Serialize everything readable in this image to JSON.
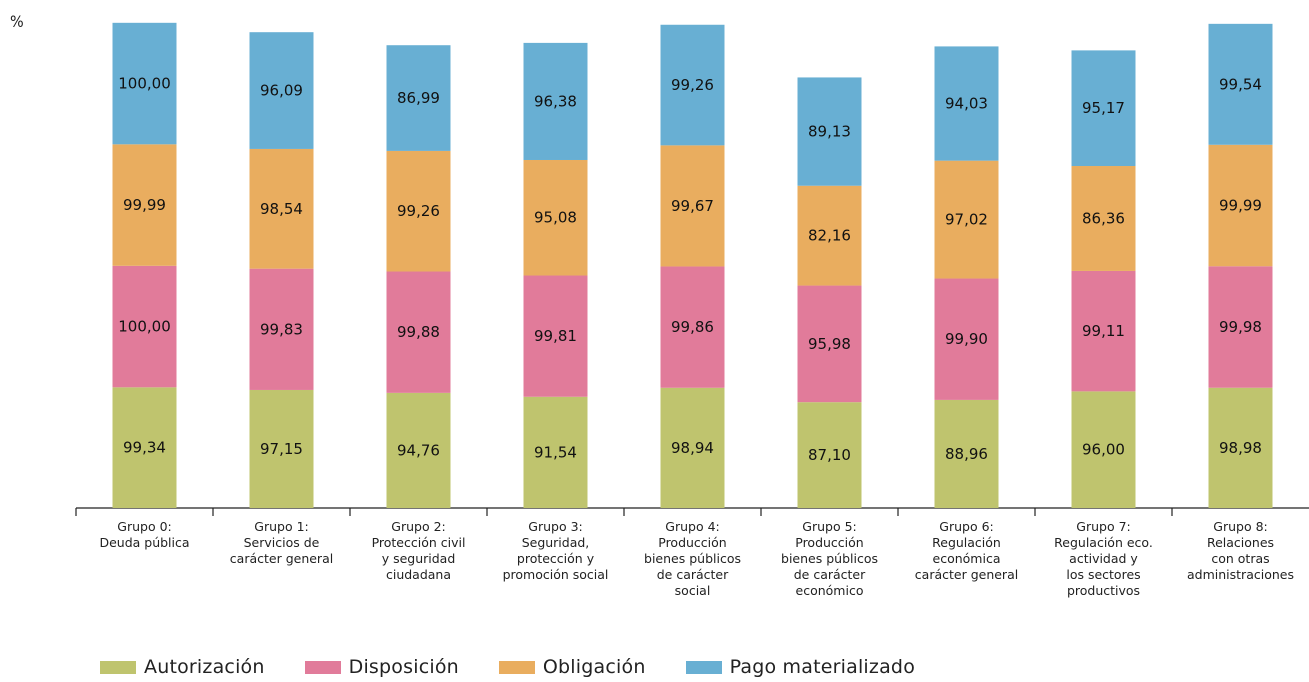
{
  "chart_data": {
    "type": "bar",
    "stacked": true,
    "ylabel": "%",
    "categories": [
      [
        "Grupo 0:",
        "Deuda pública"
      ],
      [
        "Grupo 1:",
        "Servicios de",
        "carácter general"
      ],
      [
        "Grupo 2:",
        "Protección civil",
        "y seguridad",
        "ciudadana"
      ],
      [
        "Grupo 3:",
        "Seguridad,",
        "protección y",
        "promoción social"
      ],
      [
        "Grupo 4:",
        "Producción",
        "bienes públicos",
        "de carácter",
        "social"
      ],
      [
        "Grupo 5:",
        "Producción",
        "bienes públicos",
        "de carácter",
        "económico"
      ],
      [
        "Grupo 6:",
        "Regulación",
        "económica",
        "carácter general"
      ],
      [
        "Grupo 7:",
        "Regulación eco.",
        "actividad y",
        "los sectores",
        "productivos"
      ],
      [
        "Grupo 8:",
        "Relaciones",
        "con otras",
        "administraciones"
      ]
    ],
    "series": [
      {
        "name": "Autorización",
        "color": "#bfc46e",
        "values": [
          99.34,
          97.15,
          94.76,
          91.54,
          98.94,
          87.1,
          88.96,
          96.0,
          98.98
        ],
        "labels": [
          "99,34",
          "97,15",
          "94,76",
          "91,54",
          "98,94",
          "87,10",
          "88,96",
          "96,00",
          "98,98"
        ]
      },
      {
        "name": "Disposición",
        "color": "#e17b9a",
        "values": [
          100.0,
          99.83,
          99.88,
          99.81,
          99.86,
          95.98,
          99.9,
          99.11,
          99.98
        ],
        "labels": [
          "100,00",
          "99,83",
          "99,88",
          "99,81",
          "99,86",
          "95,98",
          "99,90",
          "99,11",
          "99,98"
        ]
      },
      {
        "name": "Obligación",
        "color": "#e9ad5f",
        "values": [
          99.99,
          98.54,
          99.26,
          95.08,
          99.67,
          82.16,
          97.02,
          86.36,
          99.99
        ],
        "labels": [
          "99,99",
          "98,54",
          "99,26",
          "95,08",
          "99,67",
          "82,16",
          "97,02",
          "86,36",
          "99,99"
        ]
      },
      {
        "name": "Pago materializado",
        "color": "#68afd3",
        "values": [
          100.0,
          96.09,
          86.99,
          96.38,
          99.26,
          89.13,
          94.03,
          95.17,
          99.54
        ],
        "labels": [
          "100,00",
          "96,09",
          "86,99",
          "96,38",
          "99,26",
          "89,13",
          "94,03",
          "95,17",
          "99,54"
        ]
      }
    ],
    "legend": "bottom",
    "grid": false
  }
}
